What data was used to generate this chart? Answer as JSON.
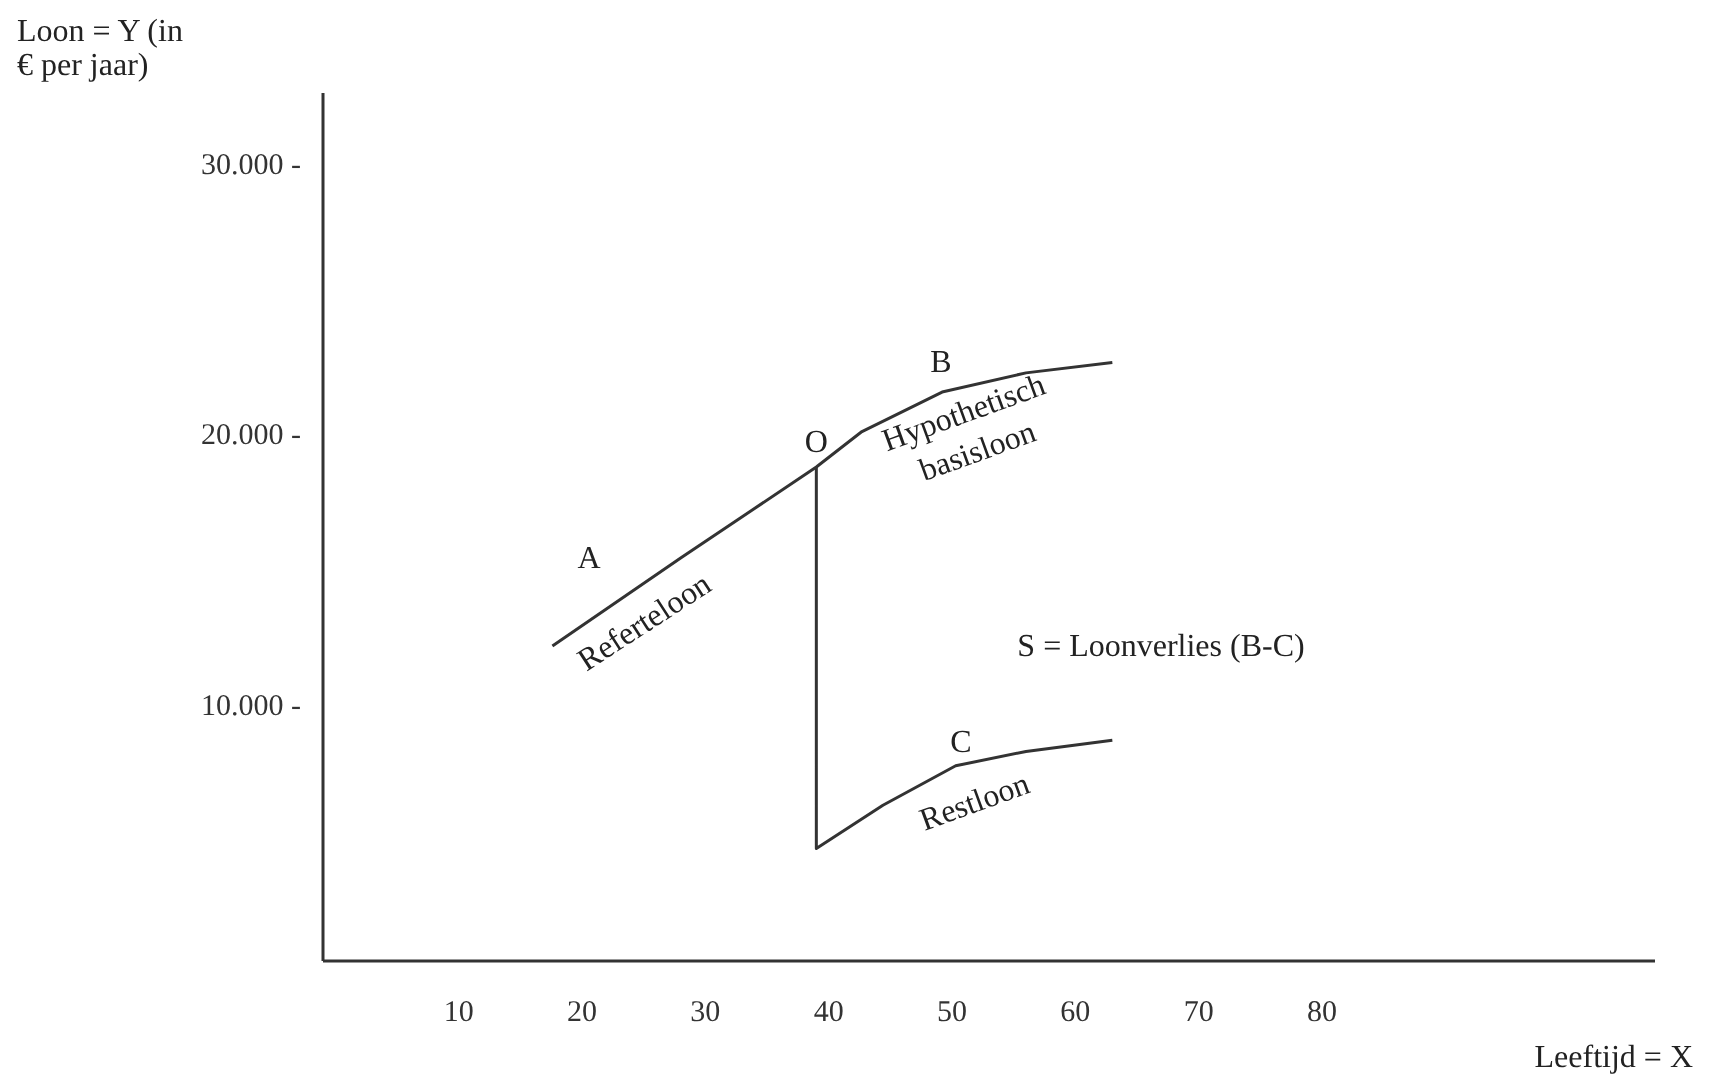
{
  "chart_data": {
    "type": "line",
    "xlabel": "Leeftijd = X",
    "ylabel": "Loon = Y (in\n€ per jaar)",
    "xlim": [
      -1,
      107
    ],
    "ylim": [
      600,
      32700
    ],
    "xticks": [
      10,
      20,
      30,
      40,
      50,
      60,
      70,
      80
    ],
    "yticks": [
      {
        "value": 10000,
        "label": "10.000 -"
      },
      {
        "value": 20000,
        "label": "20.000 -"
      },
      {
        "value": 30000,
        "label": "30.000 -"
      }
    ],
    "grid": false,
    "marker": "none",
    "line_style": "solid",
    "series": [
      {
        "color": "#333333",
        "x": [
          17.6,
          28,
          39,
          42.7,
          49.2,
          56,
          63
        ],
        "values": [
          12250,
          15500,
          18870,
          20180,
          21640,
          22350,
          22730
        ]
      },
      {
        "color": "#333333",
        "x": [
          39,
          39,
          44.4,
          50.3,
          56,
          63
        ],
        "values": [
          18870,
          4760,
          6360,
          7820,
          8350,
          8760
        ]
      }
    ],
    "annotations": [
      "A",
      "Referteloon",
      {
        "text": "O",
        "x": 39,
        "y": 18870
      },
      "B",
      "Hypothetisch\nbasisloon",
      "C",
      "Restloon",
      "S = Loonverlies (B-C)"
    ]
  }
}
